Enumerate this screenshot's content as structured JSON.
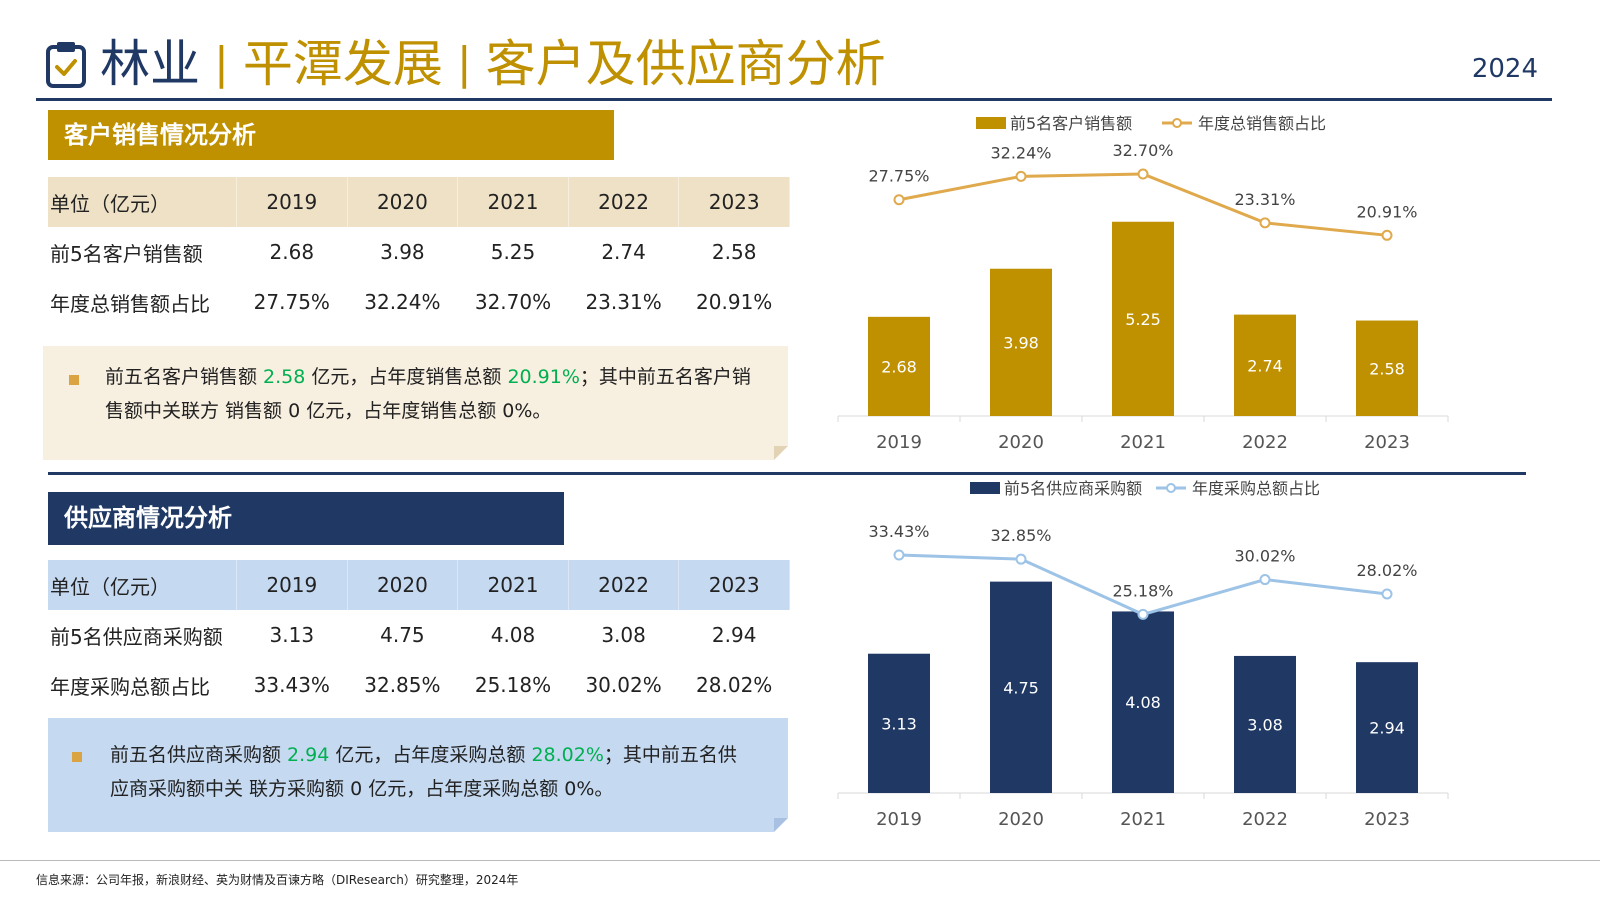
{
  "header": {
    "segment1": "林业",
    "separator": "|",
    "segment2": "平潭发展",
    "segment3": "客户及供应商分析",
    "year": "2024",
    "icon": "clipboard-check-icon"
  },
  "colors": {
    "navy": "#1f3864",
    "gold": "#bf9000",
    "light_blue": "#9dc3e6",
    "line_gold": "#dfa94c",
    "highlight_green": "#00b050"
  },
  "customer": {
    "banner": "客户销售情况分析",
    "table": {
      "headers": [
        "单位（亿元）",
        "2019",
        "2020",
        "2021",
        "2022",
        "2023"
      ],
      "rows": [
        [
          "前5名客户销售额",
          "2.68",
          "3.98",
          "5.25",
          "2.74",
          "2.58"
        ],
        [
          "年度总销售额占比",
          "27.75%",
          "32.24%",
          "32.70%",
          "23.31%",
          "20.91%"
        ]
      ]
    },
    "note": {
      "part1": "前五名客户销售额 ",
      "value1": "2.58",
      "part2": " 亿元，占年度销售总额 ",
      "value2": "20.91%",
      "part3": "；其中前五名客户销售额中关联方 销售额 0 亿元，占年度销售总额 0%。"
    }
  },
  "supplier": {
    "banner": "供应商情况分析",
    "table": {
      "headers": [
        "单位（亿元）",
        "2019",
        "2020",
        "2021",
        "2022",
        "2023"
      ],
      "rows": [
        [
          "前5名供应商采购额",
          "3.13",
          "4.75",
          "4.08",
          "3.08",
          "2.94"
        ],
        [
          "年度采购总额占比",
          "33.43%",
          "32.85%",
          "25.18%",
          "30.02%",
          "28.02%"
        ]
      ]
    },
    "note": {
      "part1": "前五名供应商采购额 ",
      "value1": "2.94",
      "part2": " 亿元，占年度采购总额 ",
      "value2": "28.02%",
      "part3": "；其中前五名供应商采购额中关 联方采购额 0 亿元，占年度采购总额 0%。"
    }
  },
  "chart_data": [
    {
      "type": "bar",
      "categories": [
        "2019",
        "2020",
        "2021",
        "2022",
        "2023"
      ],
      "series": [
        {
          "name": "前5名客户销售额",
          "kind": "bar",
          "values": [
            2.68,
            3.98,
            5.25,
            2.74,
            2.58
          ],
          "labels": [
            "2.68",
            "3.98",
            "5.25",
            "2.74",
            "2.58"
          ]
        },
        {
          "name": "年度总销售额占比",
          "kind": "line",
          "values": [
            27.75,
            32.24,
            32.7,
            23.31,
            20.91
          ],
          "labels": [
            "27.75%",
            "32.24%",
            "32.70%",
            "23.31%",
            "20.91%"
          ]
        }
      ],
      "legend_position": "top",
      "grid": false
    },
    {
      "type": "bar",
      "categories": [
        "2019",
        "2020",
        "2021",
        "2022",
        "2023"
      ],
      "series": [
        {
          "name": "前5名供应商采购额",
          "kind": "bar",
          "values": [
            3.13,
            4.75,
            4.08,
            3.08,
            2.94
          ],
          "labels": [
            "3.13",
            "4.75",
            "4.08",
            "3.08",
            "2.94"
          ]
        },
        {
          "name": "年度采购总额占比",
          "kind": "line",
          "values": [
            33.43,
            32.85,
            25.18,
            30.02,
            28.02
          ],
          "labels": [
            "33.43%",
            "32.85%",
            "25.18%",
            "30.02%",
            "28.02%"
          ]
        }
      ],
      "legend_position": "top",
      "grid": false
    }
  ],
  "footer": {
    "source": "信息来源：公司年报，新浪财经、英为财情及百谏方略（DIResearch）研究整理，2024年"
  }
}
